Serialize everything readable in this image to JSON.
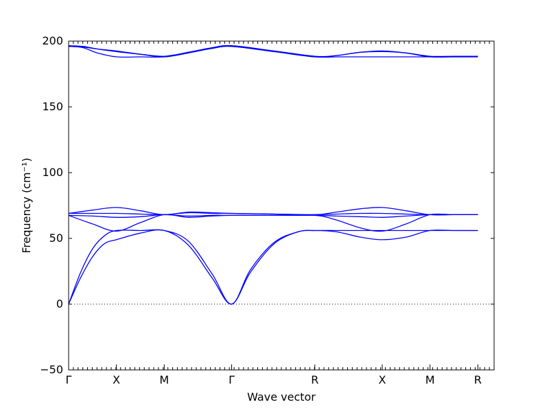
{
  "chart_data": {
    "type": "line",
    "title": "",
    "xlabel": "Wave vector",
    "ylabel": "Frequency (cm⁻¹)",
    "ylim": [
      -50,
      200
    ],
    "yticks": [
      -50,
      0,
      50,
      100,
      150,
      200
    ],
    "ytick_labels": [
      "−50",
      "0",
      "50",
      "100",
      "150",
      "200"
    ],
    "xlim": [
      0,
      8.9
    ],
    "high_symmetry_points": [
      {
        "label": "Γ",
        "x": 0
      },
      {
        "label": "X",
        "x": 1
      },
      {
        "label": "M",
        "x": 2
      },
      {
        "label": "Γ",
        "x": 3.41
      },
      {
        "label": "R",
        "x": 5.15
      },
      {
        "label": "X",
        "x": 6.56
      },
      {
        "label": "M",
        "x": 7.56
      },
      {
        "label": "R",
        "x": 8.56
      }
    ],
    "zero_line": true,
    "band_color": "#0000ff",
    "series": [
      {
        "x": [
          0,
          0.25,
          0.5,
          0.75,
          1,
          1.5,
          2,
          2.5,
          3,
          3.41,
          3.8,
          4.3,
          4.8,
          5.15,
          5.6,
          6.1,
          6.56,
          7.06,
          7.56,
          8.06,
          8.56
        ],
        "y": [
          0,
          20,
          36,
          46,
          49,
          54,
          56,
          45,
          20,
          0,
          24,
          46,
          55,
          56,
          55,
          51,
          49,
          51,
          56,
          56,
          56
        ]
      },
      {
        "x": [
          0,
          0.25,
          0.5,
          0.75,
          1,
          1.5,
          2,
          2.5,
          3,
          3.41,
          3.8,
          4.3,
          4.8,
          5.15,
          5.6,
          6.1,
          6.56,
          7.06,
          7.56,
          8.06,
          8.56
        ],
        "y": [
          0,
          24,
          42,
          52,
          56,
          56,
          56,
          48,
          23,
          0,
          26,
          47,
          55,
          56,
          56,
          56,
          56,
          56,
          56,
          56,
          56
        ]
      },
      {
        "x": [
          0,
          0.5,
          1,
          1.5,
          2,
          2.5,
          3,
          3.41,
          4.3,
          5.15,
          5.6,
          6.1,
          6.56,
          7.06,
          7.56,
          8.06,
          8.56
        ],
        "y": [
          67.5,
          61,
          55.5,
          62,
          68,
          66,
          67,
          67.5,
          67.5,
          67.5,
          64,
          58,
          55.5,
          61,
          68,
          68,
          68
        ]
      },
      {
        "x": [
          0,
          0.5,
          1,
          1.5,
          2,
          2.5,
          3,
          3.41,
          4.3,
          5.15,
          5.6,
          6.1,
          6.56,
          7.06,
          7.56,
          8.06,
          8.56
        ],
        "y": [
          67.5,
          67,
          66,
          66.5,
          68,
          67,
          67.5,
          67.5,
          67.5,
          67.5,
          67,
          66.5,
          66,
          67,
          68,
          68,
          68
        ]
      },
      {
        "x": [
          0,
          0.5,
          1,
          1.5,
          2,
          2.5,
          3,
          3.41,
          4.3,
          5.15,
          5.6,
          6.1,
          6.56,
          7.06,
          7.56,
          8.06,
          8.56
        ],
        "y": [
          69,
          69,
          69,
          68.5,
          68,
          69.5,
          69,
          69,
          68.5,
          68,
          68.5,
          69,
          69,
          68.5,
          68,
          68,
          68
        ]
      },
      {
        "x": [
          0,
          0.5,
          1,
          1.5,
          2,
          2.5,
          3,
          3.41,
          4.3,
          5.15,
          5.6,
          6.1,
          6.56,
          7.06,
          7.56,
          8.06,
          8.56
        ],
        "y": [
          69,
          71.5,
          73.5,
          71,
          68,
          70,
          69.5,
          69,
          68.5,
          68,
          70,
          72.5,
          73.5,
          71,
          68,
          68,
          68
        ]
      },
      {
        "x": [
          0,
          0.3,
          0.6,
          1,
          1.5,
          2,
          2.5,
          3,
          3.41,
          4.3,
          5.15,
          5.6,
          6.1,
          6.56,
          7.06,
          7.56,
          8.06,
          8.56
        ],
        "y": [
          196,
          195,
          191,
          188,
          188,
          188,
          191,
          194.5,
          196,
          192,
          188,
          188,
          188,
          188,
          188,
          188,
          188,
          188
        ]
      },
      {
        "x": [
          0,
          0.3,
          0.6,
          1,
          1.5,
          2,
          2.5,
          3,
          3.41,
          4.3,
          5.15,
          5.6,
          6.1,
          6.56,
          7.06,
          7.56,
          8.06,
          8.56
        ],
        "y": [
          196,
          195.5,
          194,
          192.5,
          190,
          188,
          191,
          194.5,
          196,
          192,
          188,
          189,
          191.5,
          192.5,
          191,
          188,
          188,
          188
        ]
      },
      {
        "x": [
          0,
          0.3,
          0.6,
          1,
          1.5,
          2,
          2.5,
          3,
          3.41,
          4.3,
          5.15,
          5.6,
          6.1,
          6.56,
          7.06,
          7.56,
          8.06,
          8.56
        ],
        "y": [
          196.5,
          196,
          194,
          192,
          190,
          188.5,
          191.5,
          195,
          196.5,
          192.5,
          188.5,
          189,
          191.5,
          192,
          191,
          188.5,
          188.5,
          188.5
        ]
      }
    ]
  }
}
